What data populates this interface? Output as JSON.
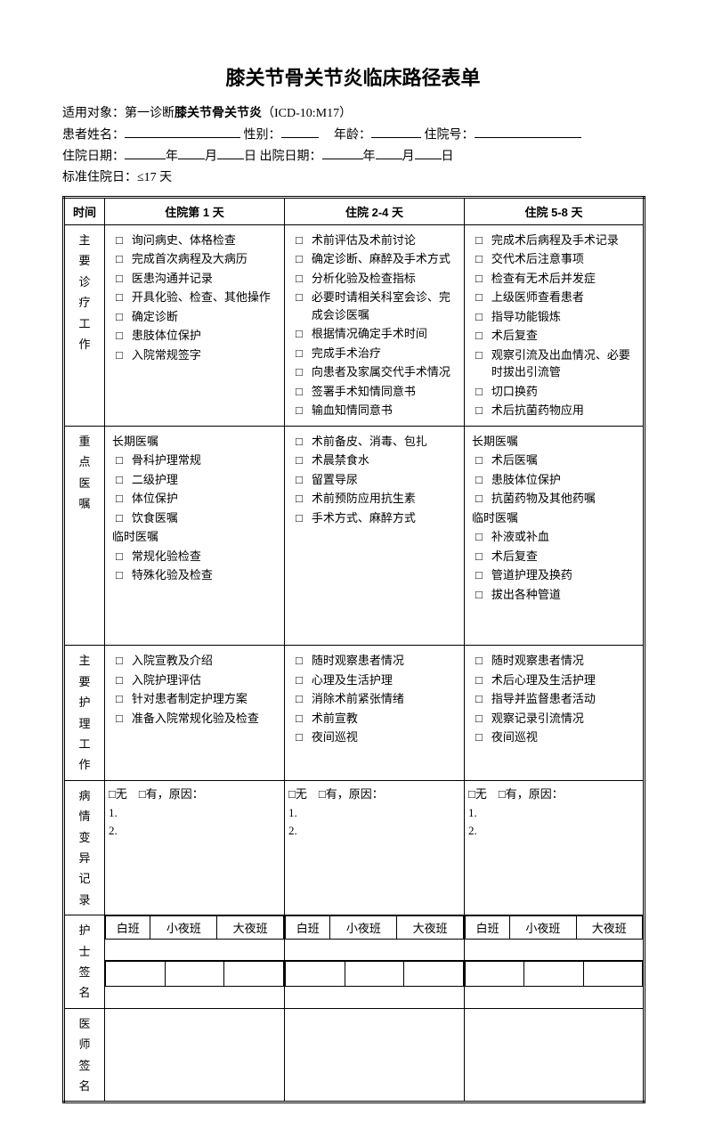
{
  "title": "膝关节骨关节炎临床路径表单",
  "meta": {
    "applicable_prefix": "适用对象：第一诊断",
    "applicable_bold": "膝关节骨关节炎",
    "applicable_code": "（ICD-10:M17）",
    "name_label": "患者姓名：",
    "sex_label": "性别：",
    "age_label": "年龄：",
    "hosp_no_label": "住院号：",
    "admit_label": "住院日期：",
    "discharge_label": "出院日期：",
    "year": "年",
    "month": "月",
    "day": "日",
    "std_days_label": "标准住院日：",
    "std_days_value": "≤17 天"
  },
  "headers": {
    "time": "时间",
    "day1": "住院第 1 天",
    "day24": "住院 2-4 天",
    "day58": "住院 5-8 天"
  },
  "rowLabels": {
    "work": "主要诊疗工作",
    "orders": "重点医嘱",
    "nursing": "主要护理工作",
    "variance": "病情变异记录",
    "nurse_sig": "护士签名",
    "doctor_sig": "医师签名"
  },
  "work": {
    "c1": [
      "询问病史、体格检查",
      "完成首次病程及大病历",
      "医患沟通并记录",
      "开具化验、检查、其他操作",
      "确定诊断",
      "患肢体位保护",
      "入院常规签字"
    ],
    "c2": [
      "术前评估及术前讨论",
      "确定诊断、麻醉及手术方式",
      "分析化验及检查指标",
      "必要时请相关科室会诊、完成会诊医嘱",
      "根据情况确定手术时间",
      "完成手术治疗",
      "向患者及家属交代手术情况",
      "签署手术知情同意书",
      "输血知情同意书"
    ],
    "c3": [
      "完成术后病程及手术记录",
      "交代术后注意事项",
      "检查有无术后并发症",
      "上级医师查看患者",
      "指导功能锻炼",
      "术后复查",
      "观察引流及出血情况、必要时拔出引流管",
      "切口换药",
      "术后抗菌药物应用"
    ]
  },
  "orders": {
    "c1_head1": "长期医嘱",
    "c1_list1": [
      "骨科护理常规",
      "二级护理",
      "体位保护",
      "饮食医嘱"
    ],
    "c1_head2": "临时医嘱",
    "c1_list2": [
      "常规化验检查",
      "特殊化验及检查"
    ],
    "c2": [
      "术前备皮、消毒、包扎",
      "术晨禁食水",
      "留置导尿",
      "术前预防应用抗生素",
      "手术方式、麻醉方式"
    ],
    "c3_head1": "长期医嘱",
    "c3_list1": [
      "术后医嘱",
      "患肢体位保护",
      "抗菌药物及其他药嘱"
    ],
    "c3_head2": "临时医嘱",
    "c3_list2": [
      "补液或补血",
      "术后复查",
      "管道护理及换药",
      "拔出各种管道"
    ]
  },
  "nursing": {
    "c1": [
      "入院宣教及介绍",
      "入院护理评估",
      "针对患者制定护理方案",
      "准备入院常规化验及检查"
    ],
    "c2": [
      "随时观察患者情况",
      "心理及生活护理",
      "消除术前紧张情绪",
      "术前宣教",
      "夜间巡视"
    ],
    "c3": [
      "随时观察患者情况",
      "术后心理及生活护理",
      "指导并监督患者活动",
      "观察记录引流情况",
      "夜间巡视"
    ]
  },
  "variance": {
    "line1": "□无　□有，原因：",
    "line2": "1.",
    "line3": "2."
  },
  "shift": {
    "d": "白班",
    "e": "小夜班",
    "n": "大夜班"
  },
  "checkbox_glyph": "□"
}
